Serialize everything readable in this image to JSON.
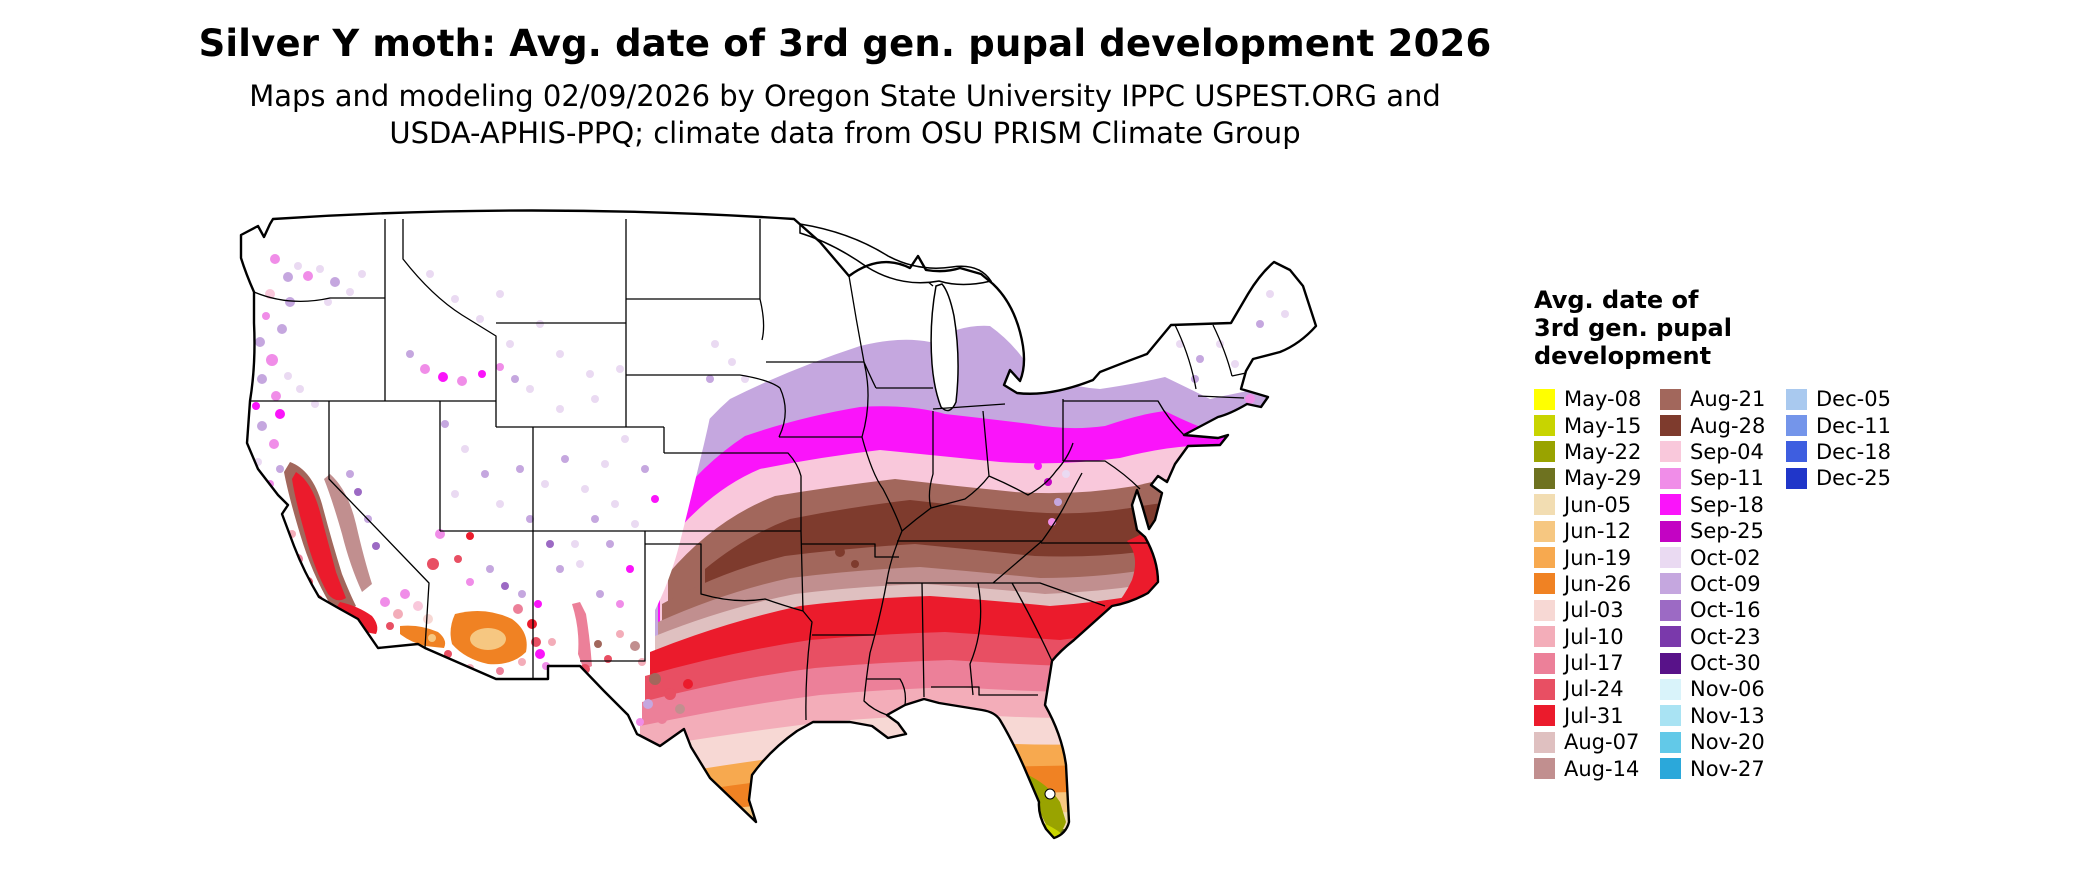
{
  "header": {
    "title": "Silver Y moth: Avg. date of 3rd gen. pupal development 2026",
    "subtitle_line1": "Maps and modeling 02/09/2026 by Oregon State University IPPC USPEST.ORG and",
    "subtitle_line2": "USDA-APHIS-PPQ; climate data from OSU PRISM Climate Group"
  },
  "legend": {
    "title_lines": [
      "Avg. date of",
      "3rd gen. pupal",
      "development"
    ],
    "columns": [
      {
        "entries": [
          {
            "label": "May-08",
            "color": "#FFFF00"
          },
          {
            "label": "May-15",
            "color": "#C8D400"
          },
          {
            "label": "May-22",
            "color": "#99A300"
          },
          {
            "label": "May-29",
            "color": "#6E7220"
          },
          {
            "label": "Jun-05",
            "color": "#F2DDB2"
          },
          {
            "label": "Jun-12",
            "color": "#F6C781"
          },
          {
            "label": "Jun-19",
            "color": "#F7A94F"
          },
          {
            "label": "Jun-26",
            "color": "#F08223"
          },
          {
            "label": "Jul-03",
            "color": "#F7D8D4"
          },
          {
            "label": "Jul-10",
            "color": "#F3ADB9"
          },
          {
            "label": "Jul-17",
            "color": "#EC8099"
          },
          {
            "label": "Jul-24",
            "color": "#E84F63"
          },
          {
            "label": "Jul-31",
            "color": "#EB1B2C"
          },
          {
            "label": "Aug-07",
            "color": "#DFC0C0"
          },
          {
            "label": "Aug-14",
            "color": "#C18F8F"
          }
        ]
      },
      {
        "entries": [
          {
            "label": "Aug-21",
            "color": "#A2675C"
          },
          {
            "label": "Aug-28",
            "color": "#7E3B2D"
          },
          {
            "label": "Sep-04",
            "color": "#F9C8DB"
          },
          {
            "label": "Sep-11",
            "color": "#F08DE8"
          },
          {
            "label": "Sep-18",
            "color": "#FA14FA"
          },
          {
            "label": "Sep-25",
            "color": "#C303C3"
          },
          {
            "label": "Oct-02",
            "color": "#EADAF2"
          },
          {
            "label": "Oct-09",
            "color": "#C5A7DF"
          },
          {
            "label": "Oct-16",
            "color": "#9C6AC4"
          },
          {
            "label": "Oct-23",
            "color": "#7A39AB"
          },
          {
            "label": "Oct-30",
            "color": "#581289"
          },
          {
            "label": "Nov-06",
            "color": "#D9F3FA"
          },
          {
            "label": "Nov-13",
            "color": "#A9E3F3"
          },
          {
            "label": "Nov-20",
            "color": "#62C9E8"
          },
          {
            "label": "Nov-27",
            "color": "#2BA8DA"
          }
        ]
      },
      {
        "entries": [
          {
            "label": "Dec-05",
            "color": "#A9C9EF"
          },
          {
            "label": "Dec-11",
            "color": "#7495EA"
          },
          {
            "label": "Dec-18",
            "color": "#3E5EE0"
          },
          {
            "label": "Dec-25",
            "color": "#2036C9"
          }
        ]
      }
    ]
  },
  "map": {
    "type": "choropleth-us",
    "no_data_color": "#FFFFFF",
    "border_color": "#000000"
  }
}
